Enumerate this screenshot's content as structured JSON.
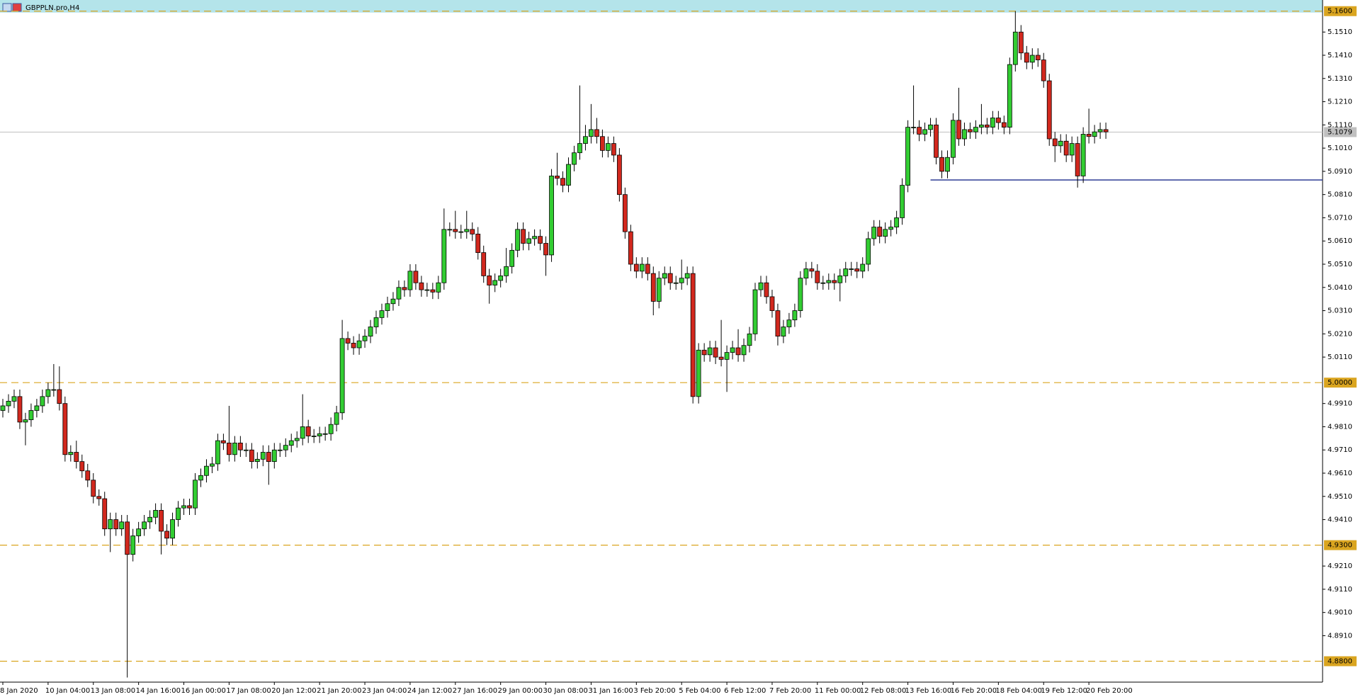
{
  "chart_data": {
    "type": "candlestick",
    "title": "GBPPLN.pro,H4",
    "categories": [
      "8 Jan 2020",
      null,
      null,
      null,
      null,
      null,
      null,
      null,
      "10 Jan 04:00",
      null,
      null,
      null,
      null,
      null,
      null,
      null,
      "13 Jan 08:00",
      null,
      null,
      null,
      null,
      null,
      null,
      null,
      "14 Jan 16:00",
      null,
      null,
      null,
      null,
      null,
      null,
      null,
      "16 Jan 00:00",
      null,
      null,
      null,
      null,
      null,
      null,
      null,
      "17 Jan 08:00",
      null,
      null,
      null,
      null,
      null,
      null,
      null,
      "20 Jan 12:00",
      null,
      null,
      null,
      null,
      null,
      null,
      null,
      "21 Jan 20:00",
      null,
      null,
      null,
      null,
      null,
      null,
      null,
      "23 Jan 04:00",
      null,
      null,
      null,
      null,
      null,
      null,
      null,
      "24 Jan 12:00",
      null,
      null,
      null,
      null,
      null,
      null,
      null,
      "27 Jan 16:00",
      null,
      null,
      null,
      null,
      null,
      null,
      null,
      "29 Jan 00:00",
      null,
      null,
      null,
      null,
      null,
      null,
      null,
      "30 Jan 08:00",
      null,
      null,
      null,
      null,
      null,
      null,
      null,
      "31 Jan 16:00",
      null,
      null,
      null,
      null,
      null,
      null,
      null,
      "3 Feb 20:00",
      null,
      null,
      null,
      null,
      null,
      null,
      null,
      "5 Feb 04:00",
      null,
      null,
      null,
      null,
      null,
      null,
      null,
      "6 Feb 12:00",
      null,
      null,
      null,
      null,
      null,
      null,
      null,
      "7 Feb 20:00",
      null,
      null,
      null,
      null,
      null,
      null,
      null,
      "11 Feb 00:00",
      null,
      null,
      null,
      null,
      null,
      null,
      null,
      "12 Feb 08:00",
      null,
      null,
      null,
      null,
      null,
      null,
      null,
      "13 Feb 16:00",
      null,
      null,
      null,
      null,
      null,
      null,
      null,
      "16 Feb 20:00",
      null,
      null,
      null,
      null,
      null,
      null,
      null,
      "18 Feb 04:00",
      null,
      null,
      null,
      null,
      null,
      null,
      null,
      "19 Feb 12:00",
      null,
      null,
      null,
      null,
      null,
      null,
      null,
      "20 Feb 20:00",
      null,
      null,
      null
    ],
    "open": [
      4.988,
      4.99,
      4.992,
      4.994,
      4.983,
      4.984,
      4.988,
      4.99,
      4.994,
      4.997,
      4.997,
      4.991,
      4.969,
      4.97,
      4.966,
      4.962,
      4.958,
      4.951,
      4.95,
      4.937,
      4.941,
      4.937,
      4.94,
      4.926,
      4.934,
      4.937,
      4.94,
      4.942,
      4.945,
      4.936,
      4.933,
      4.941,
      4.946,
      4.947,
      4.946,
      4.958,
      4.96,
      4.964,
      4.965,
      4.975,
      4.974,
      4.969,
      4.974,
      4.971,
      4.971,
      4.966,
      4.967,
      4.97,
      4.966,
      4.971,
      4.971,
      4.973,
      4.975,
      4.976,
      4.981,
      4.977,
      4.977,
      4.978,
      4.978,
      4.982,
      4.987,
      5.019,
      5.017,
      5.015,
      5.018,
      5.02,
      5.024,
      5.028,
      5.031,
      5.034,
      5.036,
      5.041,
      5.04,
      5.048,
      5.043,
      5.04,
      5.04,
      5.039,
      5.043,
      5.066,
      5.066,
      5.065,
      5.065,
      5.066,
      5.064,
      5.056,
      5.046,
      5.042,
      5.044,
      5.046,
      5.05,
      5.057,
      5.066,
      5.06,
      5.062,
      5.063,
      5.06,
      5.055,
      5.089,
      5.088,
      5.085,
      5.094,
      5.099,
      5.103,
      5.106,
      5.109,
      5.106,
      5.1,
      5.103,
      5.098,
      5.081,
      5.065,
      5.051,
      5.048,
      5.051,
      5.047,
      5.035,
      5.045,
      5.047,
      5.043,
      5.043,
      5.045,
      5.047,
      4.994,
      5.014,
      5.012,
      5.015,
      5.011,
      5.01,
      5.013,
      5.015,
      5.012,
      5.016,
      5.021,
      5.04,
      5.043,
      5.037,
      5.031,
      5.02,
      5.024,
      5.027,
      5.031,
      5.045,
      5.049,
      5.048,
      5.043,
      5.043,
      5.044,
      5.043,
      5.046,
      5.049,
      5.049,
      5.048,
      5.051,
      5.062,
      5.067,
      5.063,
      5.066,
      5.067,
      5.071,
      5.085,
      5.11,
      5.11,
      5.107,
      5.109,
      5.111,
      5.097,
      5.091,
      5.097,
      5.113,
      5.105,
      5.109,
      5.108,
      5.11,
      5.111,
      5.11,
      5.114,
      5.112,
      5.11,
      5.137,
      5.151,
      5.142,
      5.138,
      5.141,
      5.139,
      5.13,
      5.105,
      5.102,
      5.104,
      5.098,
      5.103,
      5.089,
      5.107,
      5.106,
      5.108,
      5.109
    ],
    "high": [
      4.993,
      4.995,
      4.997,
      4.997,
      4.987,
      4.991,
      4.993,
      4.997,
      5.0,
      5.008,
      5.007,
      4.994,
      4.973,
      4.975,
      4.969,
      4.965,
      4.961,
      4.954,
      4.953,
      4.944,
      4.944,
      4.943,
      4.943,
      4.937,
      4.94,
      4.943,
      4.945,
      4.948,
      4.948,
      4.939,
      4.944,
      4.949,
      4.95,
      4.95,
      4.961,
      4.963,
      4.967,
      4.968,
      4.978,
      4.978,
      4.99,
      4.977,
      4.977,
      4.974,
      4.974,
      4.97,
      4.973,
      4.973,
      4.974,
      4.974,
      4.976,
      4.978,
      4.979,
      4.995,
      4.984,
      4.98,
      4.981,
      4.981,
      4.985,
      4.99,
      5.027,
      5.022,
      5.02,
      5.021,
      5.023,
      5.027,
      5.031,
      5.034,
      5.037,
      5.039,
      5.044,
      5.044,
      5.051,
      5.051,
      5.046,
      5.043,
      5.043,
      5.046,
      5.075,
      5.069,
      5.074,
      5.068,
      5.074,
      5.069,
      5.067,
      5.059,
      5.049,
      5.047,
      5.049,
      5.058,
      5.06,
      5.069,
      5.069,
      5.065,
      5.066,
      5.066,
      5.063,
      5.092,
      5.099,
      5.091,
      5.097,
      5.102,
      5.128,
      5.111,
      5.12,
      5.114,
      5.109,
      5.106,
      5.106,
      5.101,
      5.084,
      5.068,
      5.054,
      5.054,
      5.054,
      5.05,
      5.048,
      5.05,
      5.05,
      5.046,
      5.053,
      5.05,
      5.05,
      5.017,
      5.017,
      5.018,
      5.018,
      5.027,
      5.016,
      5.018,
      5.023,
      5.019,
      5.024,
      5.043,
      5.046,
      5.046,
      5.04,
      5.034,
      5.027,
      5.03,
      5.034,
      5.048,
      5.052,
      5.052,
      5.051,
      5.046,
      5.047,
      5.047,
      5.049,
      5.052,
      5.052,
      5.052,
      5.054,
      5.065,
      5.07,
      5.07,
      5.069,
      5.07,
      5.074,
      5.088,
      5.113,
      5.128,
      5.113,
      5.112,
      5.114,
      5.114,
      5.1,
      5.1,
      5.116,
      5.127,
      5.112,
      5.112,
      5.113,
      5.12,
      5.114,
      5.117,
      5.117,
      5.115,
      5.14,
      5.16,
      5.154,
      5.145,
      5.144,
      5.144,
      5.142,
      5.133,
      5.108,
      5.107,
      5.107,
      5.106,
      5.106,
      5.11,
      5.118,
      5.111,
      5.112,
      5.112
    ],
    "low": [
      4.985,
      4.987,
      4.989,
      4.98,
      4.973,
      4.981,
      4.985,
      4.987,
      4.991,
      4.994,
      4.988,
      4.966,
      4.966,
      4.963,
      4.959,
      4.955,
      4.948,
      4.947,
      4.934,
      4.927,
      4.934,
      4.934,
      4.873,
      4.923,
      4.931,
      4.934,
      4.937,
      4.939,
      4.926,
      4.93,
      4.93,
      4.938,
      4.943,
      4.943,
      4.943,
      4.955,
      4.957,
      4.961,
      4.962,
      4.971,
      4.966,
      4.966,
      4.968,
      4.968,
      4.963,
      4.963,
      4.964,
      4.956,
      4.963,
      4.968,
      4.968,
      4.97,
      4.972,
      4.973,
      4.974,
      4.974,
      4.974,
      4.975,
      4.975,
      4.979,
      4.984,
      5.014,
      5.012,
      5.012,
      5.015,
      5.017,
      5.021,
      5.025,
      5.028,
      5.031,
      5.033,
      5.037,
      5.037,
      5.04,
      5.037,
      5.037,
      5.036,
      5.036,
      5.04,
      5.063,
      5.062,
      5.062,
      5.062,
      5.061,
      5.053,
      5.043,
      5.034,
      5.039,
      5.041,
      5.043,
      5.047,
      5.054,
      5.057,
      5.057,
      5.059,
      5.057,
      5.046,
      5.052,
      5.085,
      5.082,
      5.082,
      5.091,
      5.096,
      5.1,
      5.103,
      5.103,
      5.097,
      5.097,
      5.095,
      5.078,
      5.062,
      5.048,
      5.045,
      5.045,
      5.044,
      5.029,
      5.032,
      5.042,
      5.04,
      5.04,
      5.04,
      5.042,
      4.991,
      4.991,
      5.009,
      5.009,
      5.008,
      5.007,
      4.996,
      5.01,
      5.009,
      5.009,
      5.013,
      5.018,
      5.037,
      5.034,
      5.028,
      5.016,
      5.017,
      5.021,
      5.024,
      5.028,
      5.042,
      5.045,
      5.04,
      5.04,
      5.04,
      5.04,
      5.035,
      5.043,
      5.046,
      5.045,
      5.045,
      5.048,
      5.059,
      5.06,
      5.06,
      5.063,
      5.064,
      5.068,
      5.082,
      5.107,
      5.104,
      5.104,
      5.106,
      5.094,
      5.088,
      5.088,
      5.094,
      5.102,
      5.102,
      5.105,
      5.105,
      5.107,
      5.107,
      5.107,
      5.109,
      5.107,
      5.107,
      5.134,
      5.139,
      5.135,
      5.135,
      5.136,
      5.127,
      5.102,
      5.095,
      5.099,
      5.095,
      5.095,
      5.084,
      5.086,
      5.103,
      5.103,
      5.105,
      5.105
    ],
    "close": [
      4.99,
      4.992,
      4.994,
      4.983,
      4.984,
      4.988,
      4.99,
      4.994,
      4.997,
      4.997,
      4.991,
      4.969,
      4.97,
      4.966,
      4.962,
      4.958,
      4.951,
      4.95,
      4.937,
      4.941,
      4.937,
      4.94,
      4.926,
      4.934,
      4.937,
      4.94,
      4.942,
      4.945,
      4.936,
      4.933,
      4.941,
      4.946,
      4.947,
      4.946,
      4.958,
      4.96,
      4.964,
      4.965,
      4.975,
      4.974,
      4.969,
      4.974,
      4.971,
      4.971,
      4.966,
      4.967,
      4.97,
      4.966,
      4.971,
      4.971,
      4.973,
      4.975,
      4.976,
      4.981,
      4.977,
      4.977,
      4.978,
      4.978,
      4.982,
      4.987,
      5.019,
      5.017,
      5.015,
      5.018,
      5.02,
      5.024,
      5.028,
      5.031,
      5.034,
      5.036,
      5.041,
      5.04,
      5.048,
      5.043,
      5.04,
      5.04,
      5.039,
      5.043,
      5.066,
      5.066,
      5.065,
      5.065,
      5.066,
      5.064,
      5.056,
      5.046,
      5.042,
      5.044,
      5.046,
      5.05,
      5.057,
      5.066,
      5.06,
      5.062,
      5.063,
      5.06,
      5.055,
      5.089,
      5.088,
      5.085,
      5.094,
      5.099,
      5.103,
      5.106,
      5.109,
      5.106,
      5.1,
      5.103,
      5.098,
      5.081,
      5.065,
      5.051,
      5.048,
      5.051,
      5.047,
      5.035,
      5.045,
      5.047,
      5.043,
      5.043,
      5.045,
      5.047,
      4.994,
      5.014,
      5.012,
      5.015,
      5.011,
      5.01,
      5.013,
      5.015,
      5.012,
      5.016,
      5.021,
      5.04,
      5.043,
      5.037,
      5.031,
      5.02,
      5.024,
      5.027,
      5.031,
      5.045,
      5.049,
      5.048,
      5.043,
      5.043,
      5.044,
      5.043,
      5.046,
      5.049,
      5.049,
      5.048,
      5.051,
      5.062,
      5.067,
      5.063,
      5.066,
      5.067,
      5.071,
      5.085,
      5.11,
      5.11,
      5.107,
      5.109,
      5.111,
      5.097,
      5.091,
      5.097,
      5.113,
      5.105,
      5.109,
      5.108,
      5.11,
      5.111,
      5.11,
      5.114,
      5.112,
      5.11,
      5.137,
      5.151,
      5.142,
      5.138,
      5.141,
      5.139,
      5.13,
      5.105,
      5.102,
      5.104,
      5.098,
      5.103,
      5.089,
      5.107,
      5.106,
      5.108,
      5.109,
      5.108
    ],
    "up_color": "#32cd32",
    "down_color": "#d2281e",
    "ylim": [
      4.871,
      5.1648
    ],
    "yticks": [
      {
        "value": 5.151,
        "label": "5.1510"
      },
      {
        "value": 5.141,
        "label": "5.1410"
      },
      {
        "value": 5.131,
        "label": "5.1310"
      },
      {
        "value": 5.121,
        "label": "5.1210"
      },
      {
        "value": 5.111,
        "label": "5.1110"
      },
      {
        "value": 5.101,
        "label": "5.1010"
      },
      {
        "value": 5.091,
        "label": "5.0910"
      },
      {
        "value": 5.081,
        "label": "5.0810"
      },
      {
        "value": 5.071,
        "label": "5.0710"
      },
      {
        "value": 5.061,
        "label": "5.0610"
      },
      {
        "value": 5.051,
        "label": "5.0510"
      },
      {
        "value": 5.041,
        "label": "5.0410"
      },
      {
        "value": 5.031,
        "label": "5.0310"
      },
      {
        "value": 5.021,
        "label": "5.0210"
      },
      {
        "value": 5.011,
        "label": "5.0110"
      },
      {
        "value": 4.991,
        "label": "4.9910"
      },
      {
        "value": 4.981,
        "label": "4.9810"
      },
      {
        "value": 4.971,
        "label": "4.9710"
      },
      {
        "value": 4.961,
        "label": "4.9610"
      },
      {
        "value": 4.951,
        "label": "4.9510"
      },
      {
        "value": 4.941,
        "label": "4.9410"
      },
      {
        "value": 4.921,
        "label": "4.9210"
      },
      {
        "value": 4.911,
        "label": "4.9110"
      },
      {
        "value": 4.901,
        "label": "4.9010"
      },
      {
        "value": 4.891,
        "label": "4.8910"
      }
    ],
    "levels": [
      {
        "value": 5.16,
        "label": "5.1600"
      },
      {
        "value": 5.0,
        "label": "5.0000"
      },
      {
        "value": 4.93,
        "label": "4.9300"
      },
      {
        "value": 4.88,
        "label": "4.8800"
      }
    ],
    "level_color": "#daa520",
    "band_color": "#b4e4ea",
    "current_price": 5.1079,
    "current_color": "#c0c0c0",
    "support": {
      "value": 5.0873,
      "from": 164
    },
    "support_color": "#1c2a8c"
  }
}
